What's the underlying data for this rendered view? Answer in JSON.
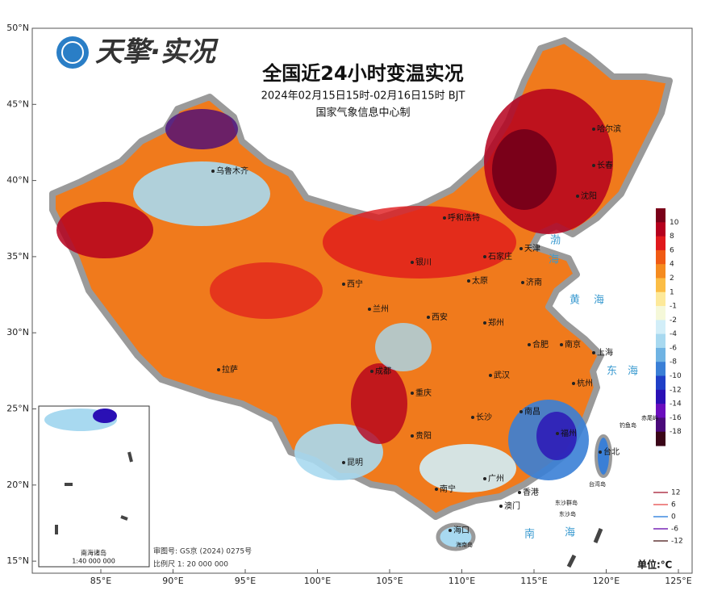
{
  "header": {
    "logo_text": "天擎·实况",
    "title": "全国近24小时变温实况",
    "subtitle": "2024年02月15日15时-02月16日15时 BJT",
    "issuer": "国家气象信息中心制"
  },
  "axes": {
    "latitude_labels": [
      "50°N",
      "45°N",
      "40°N",
      "35°N",
      "30°N",
      "25°N",
      "20°N",
      "15°N"
    ],
    "longitude_labels": [
      "85°E",
      "90°E",
      "95°E",
      "100°E",
      "105°E",
      "110°E",
      "115°E",
      "120°E",
      "125°E"
    ]
  },
  "legend": {
    "levels": [
      "10",
      "8",
      "6",
      "4",
      "2",
      "1",
      "-1",
      "-2",
      "-4",
      "-6",
      "-8",
      "-10",
      "-12",
      "-14",
      "-16",
      "-18"
    ],
    "colors": [
      "#7a0019",
      "#b5001d",
      "#e0191c",
      "#f05a14",
      "#f58b1f",
      "#fbbd45",
      "#fde99a",
      "#f5f8d9",
      "#d2eef8",
      "#a8d9f0",
      "#6fb3e3",
      "#3a7fd6",
      "#1f3fc7",
      "#2a10b5",
      "#6a0dbd",
      "#4a0a7a",
      "#3a0618"
    ],
    "unit": "单位:℃",
    "isolines": [
      {
        "label": "12",
        "color": "#c46a7a"
      },
      {
        "label": "6",
        "color": "#ef8a8a"
      },
      {
        "label": "0",
        "color": "#6fa8e8"
      },
      {
        "label": "-6",
        "color": "#9a5cc8"
      },
      {
        "label": "-12",
        "color": "#8a6a6a"
      }
    ]
  },
  "places": [
    "乌鲁木齐",
    "哈尔滨",
    "长春",
    "沈阳",
    "呼和浩特",
    "天津",
    "石家庄",
    "银川",
    "太原",
    "济南",
    "西宁",
    "兰州",
    "西安",
    "郑州",
    "合肥",
    "南京",
    "上海",
    "拉萨",
    "成都",
    "武汉",
    "杭州",
    "重庆",
    "南昌",
    "长沙",
    "福州",
    "贵阳",
    "台北",
    "昆明",
    "南宁",
    "广州",
    "香港",
    "澳门",
    "海口",
    "海南岛",
    "钓鱼岛",
    "赤尾屿",
    "台湾岛",
    "东沙群岛",
    "东沙岛"
  ],
  "seas": [
    "渤",
    "海",
    "黄",
    "海",
    "东",
    "海",
    "南",
    "海"
  ],
  "inset": {
    "title": "南海诸岛",
    "scale": "1:40 000 000"
  },
  "footer": {
    "review_number": "审图号: GS京 (2024) 0275号",
    "scale": "比例尺 1: 20 000 000"
  }
}
